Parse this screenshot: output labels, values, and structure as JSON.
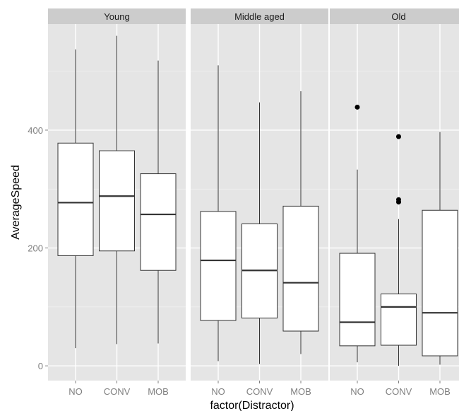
{
  "chart_data": {
    "type": "boxplot",
    "xlabel": "factor(Distractor)",
    "ylabel": "AverageSpeed",
    "ylim": [
      -25,
      580
    ],
    "yticks": [
      0,
      200,
      400
    ],
    "categories": [
      "NO",
      "CONV",
      "MOB"
    ],
    "grid": true,
    "panels": [
      {
        "name": "Young",
        "boxes": [
          {
            "category": "NO",
            "min": 30,
            "q1": 187,
            "median": 277,
            "q3": 378,
            "max": 537,
            "outliers": []
          },
          {
            "category": "CONV",
            "min": 37,
            "q1": 195,
            "median": 288,
            "q3": 365,
            "max": 560,
            "outliers": []
          },
          {
            "category": "MOB",
            "min": 38,
            "q1": 162,
            "median": 257,
            "q3": 326,
            "max": 518,
            "outliers": []
          }
        ]
      },
      {
        "name": "Middle aged",
        "boxes": [
          {
            "category": "NO",
            "min": 8,
            "q1": 77,
            "median": 179,
            "q3": 262,
            "max": 510,
            "outliers": []
          },
          {
            "category": "CONV",
            "min": 3,
            "q1": 81,
            "median": 162,
            "q3": 241,
            "max": 447,
            "outliers": []
          },
          {
            "category": "MOB",
            "min": 20,
            "q1": 59,
            "median": 141,
            "q3": 271,
            "max": 466,
            "outliers": []
          }
        ]
      },
      {
        "name": "Old",
        "boxes": [
          {
            "category": "NO",
            "min": 6,
            "q1": 34,
            "median": 74,
            "q3": 191,
            "max": 333,
            "outliers": [
              439
            ]
          },
          {
            "category": "CONV",
            "min": 0,
            "q1": 35,
            "median": 100,
            "q3": 122,
            "max": 249,
            "outliers": [
              278,
              282,
              389
            ]
          },
          {
            "category": "MOB",
            "min": 2,
            "q1": 17,
            "median": 90,
            "q3": 264,
            "max": 397,
            "outliers": []
          }
        ]
      }
    ]
  },
  "colors": {
    "panel_background": "#e5e5e5",
    "strip_background": "#cccccc",
    "grid_major": "#ffffff",
    "grid_minor": "#f2f2f2",
    "box_fill": "#ffffff",
    "box_stroke": "#333333",
    "tick_text": "#7f7f7f"
  }
}
